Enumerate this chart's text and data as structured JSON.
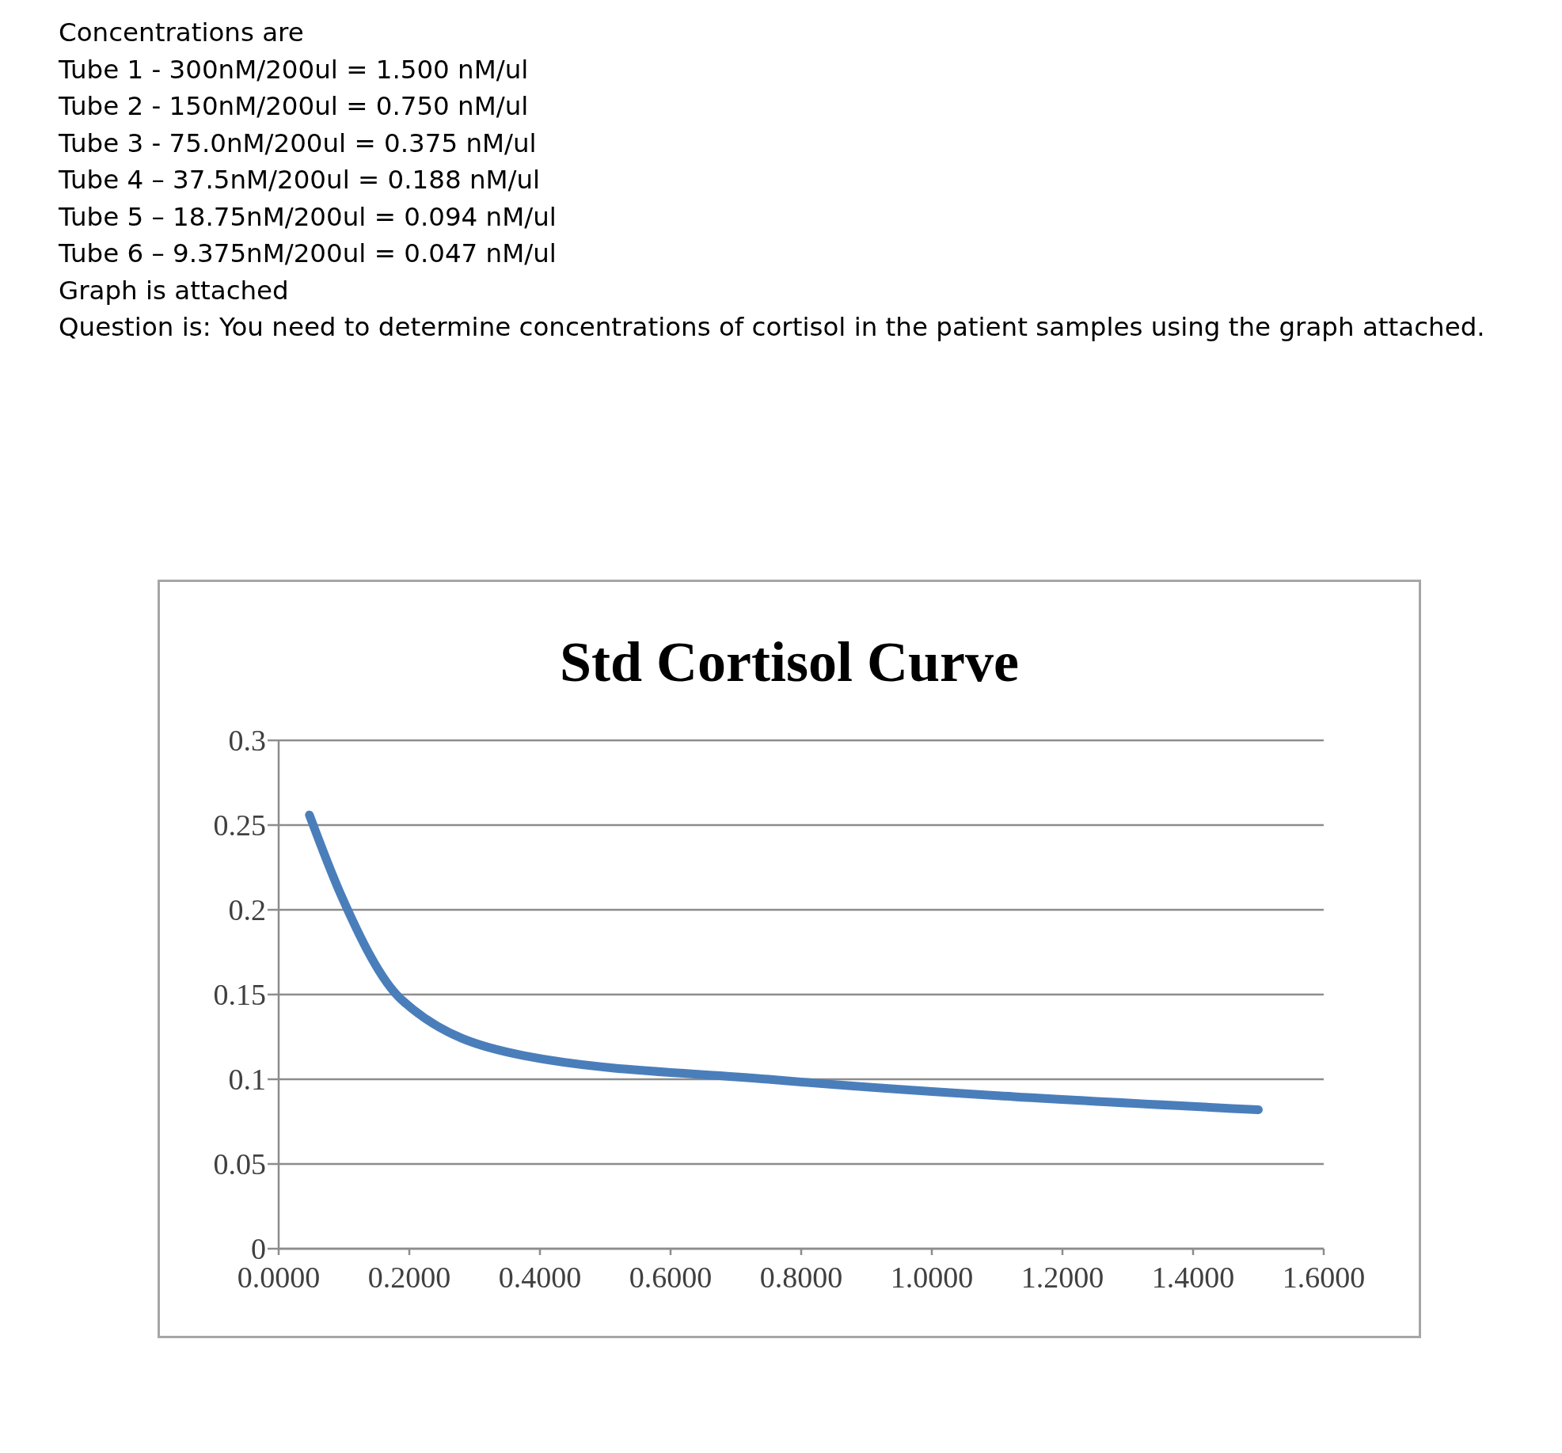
{
  "chart_data": {
    "type": "line",
    "title": "Std Cortisol Curve",
    "annotations": [
      "Concentrations are",
      "Tube 1 - 300nM/200ul = 1.500 nM/ul",
      "Tube 2 - 150nM/200ul = 0.750 nM/ul",
      "Tube 3 - 75.0nM/200ul = 0.375 nM/ul",
      "Tube 4 – 37.5nM/200ul = 0.188 nM/ul",
      "Tube 5 – 18.75nM/200ul = 0.094 nM/ul",
      "Tube 6 – 9.375nM/200ul = 0.047 nM/ul",
      "Graph is attached",
      "Question is: You need to determine concentrations of cortisol in the patient samples using the graph attached."
    ],
    "x": [
      0.047,
      0.094,
      0.188,
      0.375,
      0.75,
      1.5
    ],
    "series": [
      {
        "color": "#4a7ebb",
        "values": [
          0.256,
          0.21,
          0.147,
          0.114,
          0.1,
          0.082
        ]
      }
    ],
    "xlim": [
      0,
      1.6
    ],
    "xticks": [
      {
        "value": 0,
        "label": "0.0000"
      },
      {
        "value": 0.2,
        "label": "0.2000"
      },
      {
        "value": 0.4,
        "label": "0.4000"
      },
      {
        "value": 0.6,
        "label": "0.6000"
      },
      {
        "value": 0.8,
        "label": "0.8000"
      },
      {
        "value": 1,
        "label": "1.0000"
      },
      {
        "value": 1.2,
        "label": "1.2000"
      },
      {
        "value": 1.4,
        "label": "1.4000"
      },
      {
        "value": 1.6,
        "label": "1.6000"
      }
    ],
    "ylim": [
      0,
      0.3
    ],
    "yticks": [
      0,
      0.05,
      0.1,
      0.15,
      0.2,
      0.25,
      0.3
    ],
    "grid": "y",
    "marker": "none",
    "line_style": "solid"
  }
}
